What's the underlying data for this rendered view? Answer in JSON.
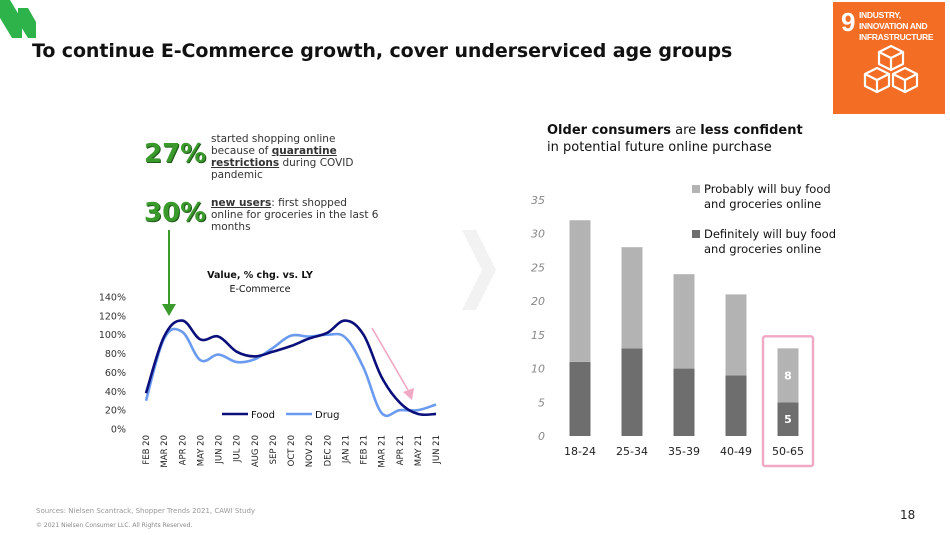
{
  "page": {
    "title": "To continue E-Commerce growth, cover underserviced age groups",
    "page_number": "18",
    "sources": "Sources: Nielsen Scantrack, Shopper Trends 2021, CAWI Study",
    "copyright": "© 2021 Nielsen Consumer LLC. All Rights Reserved."
  },
  "sdg": {
    "number": "9",
    "label": "INDUSTRY, INNOVATION AND INFRASTRUCTURE"
  },
  "stats": [
    {
      "value": "27%",
      "pre": "started shopping online because of ",
      "emph": "quarantine restrictions",
      "post": " during COVID pandemic"
    },
    {
      "value": "30%",
      "pre": "",
      "emph": "new users",
      "post": ": first shopped online for groceries in the last 6 months"
    }
  ],
  "right": {
    "title_b1": "Older consumers",
    "title_t1": " are ",
    "title_b2": "less confident",
    "title_t2": "in potential future online purchase"
  },
  "colors": {
    "food": "#0A0F7A",
    "drug": "#6A9BF0",
    "probably": "#B3B3B3",
    "definitely": "#6E6E6E",
    "highlight": "#F0A8C4",
    "green": "#3A9A2C"
  },
  "chart_data": [
    {
      "type": "line",
      "title": "Value, % chg. vs. LY",
      "subtitle": "E-Commerce",
      "categories": [
        "FEB 20",
        "MAR 20",
        "APR 20",
        "MAY 20",
        "JUN 20",
        "JUL 20",
        "AUG 20",
        "SEP 20",
        "OCT 20",
        "NOV 20",
        "DEC 20",
        "JAN 21",
        "FEB 21",
        "MAR 21",
        "APR 21",
        "MAY 21",
        "JUN 21"
      ],
      "series": [
        {
          "name": "Food",
          "values": [
            38,
            98,
            115,
            95,
            98,
            82,
            77,
            82,
            88,
            96,
            102,
            115,
            100,
            55,
            28,
            16,
            16
          ]
        },
        {
          "name": "Drug",
          "values": [
            30,
            96,
            103,
            73,
            79,
            71,
            74,
            86,
            99,
            98,
            100,
            97,
            65,
            17,
            20,
            20,
            26
          ]
        }
      ],
      "yticks": [
        "0%",
        "20%",
        "40%",
        "60%",
        "80%",
        "100%",
        "120%",
        "140%"
      ],
      "ylim": [
        0,
        140
      ]
    },
    {
      "type": "bar",
      "stacked": true,
      "categories": [
        "18-24",
        "25-34",
        "35-39",
        "40-49",
        "50-65"
      ],
      "series": [
        {
          "name": "Definitely will buy food and groceries online",
          "values": [
            11,
            13,
            10,
            9,
            5
          ]
        },
        {
          "name": "Probably will buy food and groceries online",
          "values": [
            21,
            15,
            14,
            12,
            8
          ]
        }
      ],
      "data_labels": {
        "50-65": [
          "5",
          "8"
        ]
      },
      "yticks": [
        "0",
        "5",
        "10",
        "15",
        "20",
        "25",
        "30",
        "35"
      ],
      "ylim": [
        0,
        35
      ],
      "legend": [
        {
          "line1": "Probably will buy food",
          "line2": "and groceries online"
        },
        {
          "line1": "Definitely will buy food",
          "line2": "and groceries online"
        }
      ],
      "highlighted_category": "50-65"
    }
  ]
}
